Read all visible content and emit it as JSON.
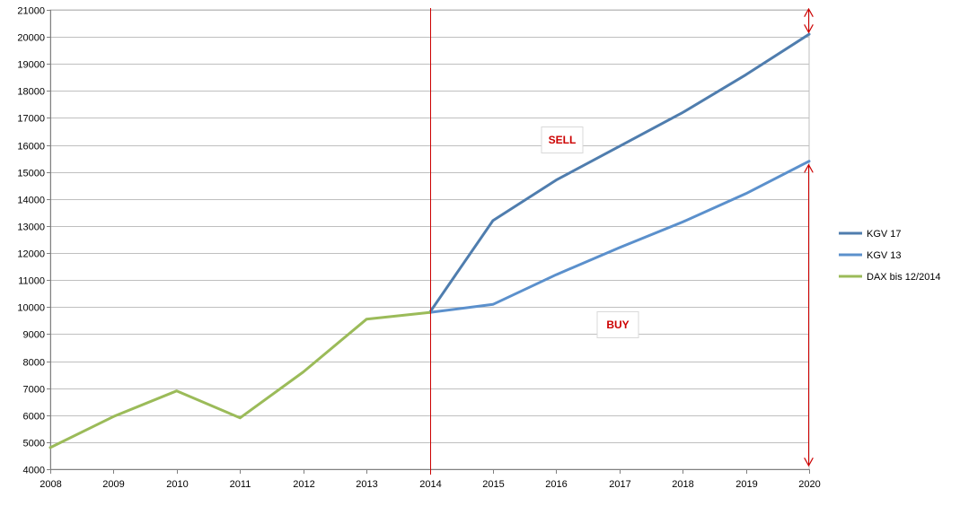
{
  "chart_data": {
    "type": "line",
    "title": "",
    "xlabel": "",
    "ylabel": "",
    "x": [
      "2008",
      "2009",
      "2010",
      "2011",
      "2012",
      "2013",
      "2014",
      "2015",
      "2016",
      "2017",
      "2018",
      "2019",
      "2020"
    ],
    "ylim": [
      4000,
      21000
    ],
    "ytick_step": 1000,
    "yticks": [
      "4000",
      "5000",
      "6000",
      "7000",
      "8000",
      "9000",
      "10000",
      "11000",
      "12000",
      "13000",
      "14000",
      "15000",
      "16000",
      "17000",
      "18000",
      "19000",
      "20000",
      "21000"
    ],
    "grid": true,
    "legend_position": "right",
    "series": [
      {
        "name": "KGV 17",
        "color": "#4f7dae",
        "values": [
          null,
          null,
          null,
          null,
          null,
          null,
          9800,
          13200,
          14700,
          15950,
          17200,
          18600,
          20100
        ]
      },
      {
        "name": "KGV 13",
        "color": "#5b90cc",
        "values": [
          null,
          null,
          null,
          null,
          null,
          null,
          9800,
          10100,
          11200,
          12200,
          13150,
          14200,
          15400
        ]
      },
      {
        "name": "DAX bis 12/2014",
        "color": "#9bbb59",
        "values": [
          4800,
          5950,
          6900,
          5900,
          7600,
          9550,
          9800,
          null,
          null,
          null,
          null,
          null,
          null
        ]
      }
    ],
    "annotations": {
      "sell_label": "SELL",
      "buy_label": "BUY",
      "annotation_color": "#cc0000",
      "vertical_line_x": "2014",
      "range_arrow_x": "2020",
      "sell_arrow_range": [
        20100,
        21000
      ],
      "buy_arrow_range": [
        4000,
        15000
      ]
    }
  }
}
